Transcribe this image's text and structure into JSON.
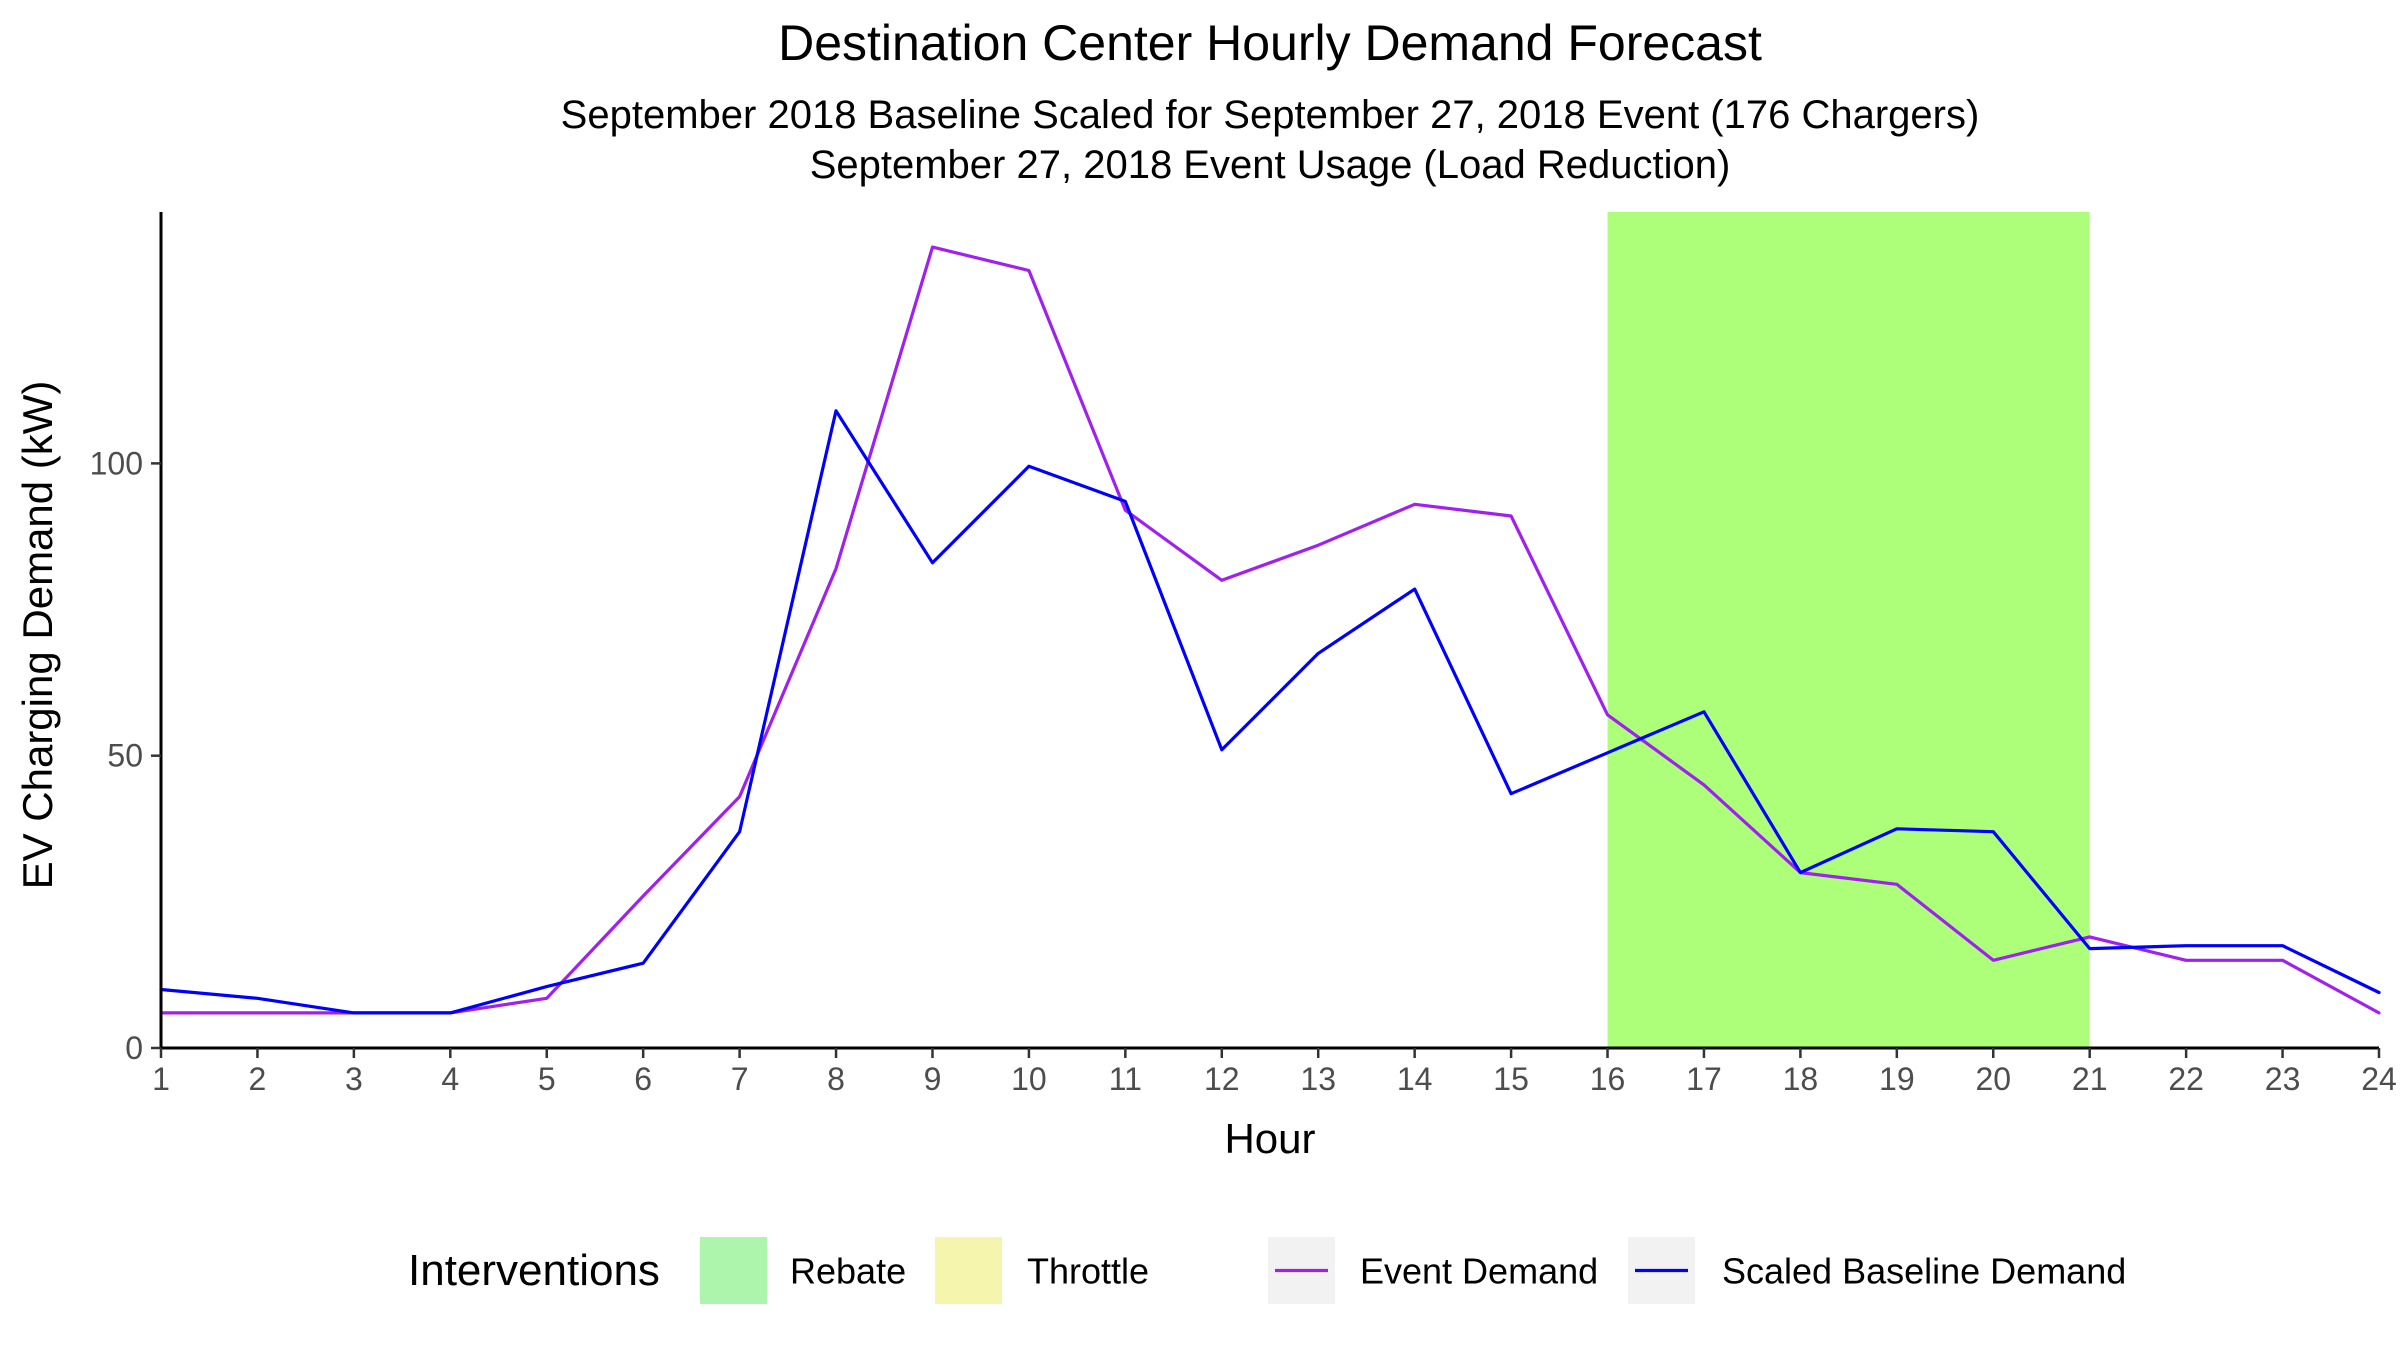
{
  "chart_data": {
    "type": "line",
    "title": "Destination Center Hourly Demand Forecast",
    "subtitle_lines": [
      "September 2018 Baseline Scaled for September 27, 2018 Event (176 Chargers)",
      "September 27, 2018 Event Usage (Load Reduction)"
    ],
    "xlabel": "Hour",
    "ylabel": "EV Charging Demand (kW)",
    "x": [
      1,
      2,
      3,
      4,
      5,
      6,
      7,
      8,
      9,
      10,
      11,
      12,
      13,
      14,
      15,
      16,
      17,
      18,
      19,
      20,
      21,
      22,
      23,
      24
    ],
    "xlim": [
      1,
      24
    ],
    "ylim": [
      0,
      143
    ],
    "x_ticks": [
      "1",
      "2",
      "3",
      "4",
      "5",
      "6",
      "7",
      "8",
      "9",
      "10",
      "11",
      "12",
      "13",
      "14",
      "15",
      "16",
      "17",
      "18",
      "19",
      "20",
      "21",
      "22",
      "23",
      "24"
    ],
    "y_ticks": [
      0,
      50,
      100
    ],
    "grid": false,
    "series": [
      {
        "name": "Event Demand",
        "color": "#a020f0",
        "values": [
          6,
          6,
          6,
          6,
          8.5,
          26,
          43,
          82,
          137,
          133,
          92,
          80,
          86,
          93,
          91,
          57,
          45,
          30,
          28,
          15,
          19,
          15,
          15,
          6
        ]
      },
      {
        "name": "Scaled Baseline Demand",
        "color": "#0000ff",
        "values": [
          10,
          8.5,
          6,
          6,
          10.5,
          14.5,
          37,
          109,
          83,
          99.5,
          93.5,
          51,
          67.5,
          78.5,
          43.5,
          50.5,
          57.5,
          30,
          37.5,
          37,
          17,
          17.5,
          17.5,
          9.5
        ]
      }
    ],
    "shaded_regions": [
      {
        "label": "Rebate",
        "x_start": 16,
        "x_end": 21,
        "color": "#adff7a"
      }
    ],
    "legend": {
      "position": "bottom",
      "title": "Interventions",
      "items": [
        {
          "label": "Rebate",
          "kind": "fill",
          "color": "#adf5ad"
        },
        {
          "label": "Throttle",
          "kind": "fill",
          "color": "#f5f5ad"
        },
        {
          "label": "Event Demand",
          "kind": "line",
          "color": "#a020f0"
        },
        {
          "label": "Scaled Baseline Demand",
          "kind": "line",
          "color": "#0000ff"
        }
      ]
    }
  }
}
